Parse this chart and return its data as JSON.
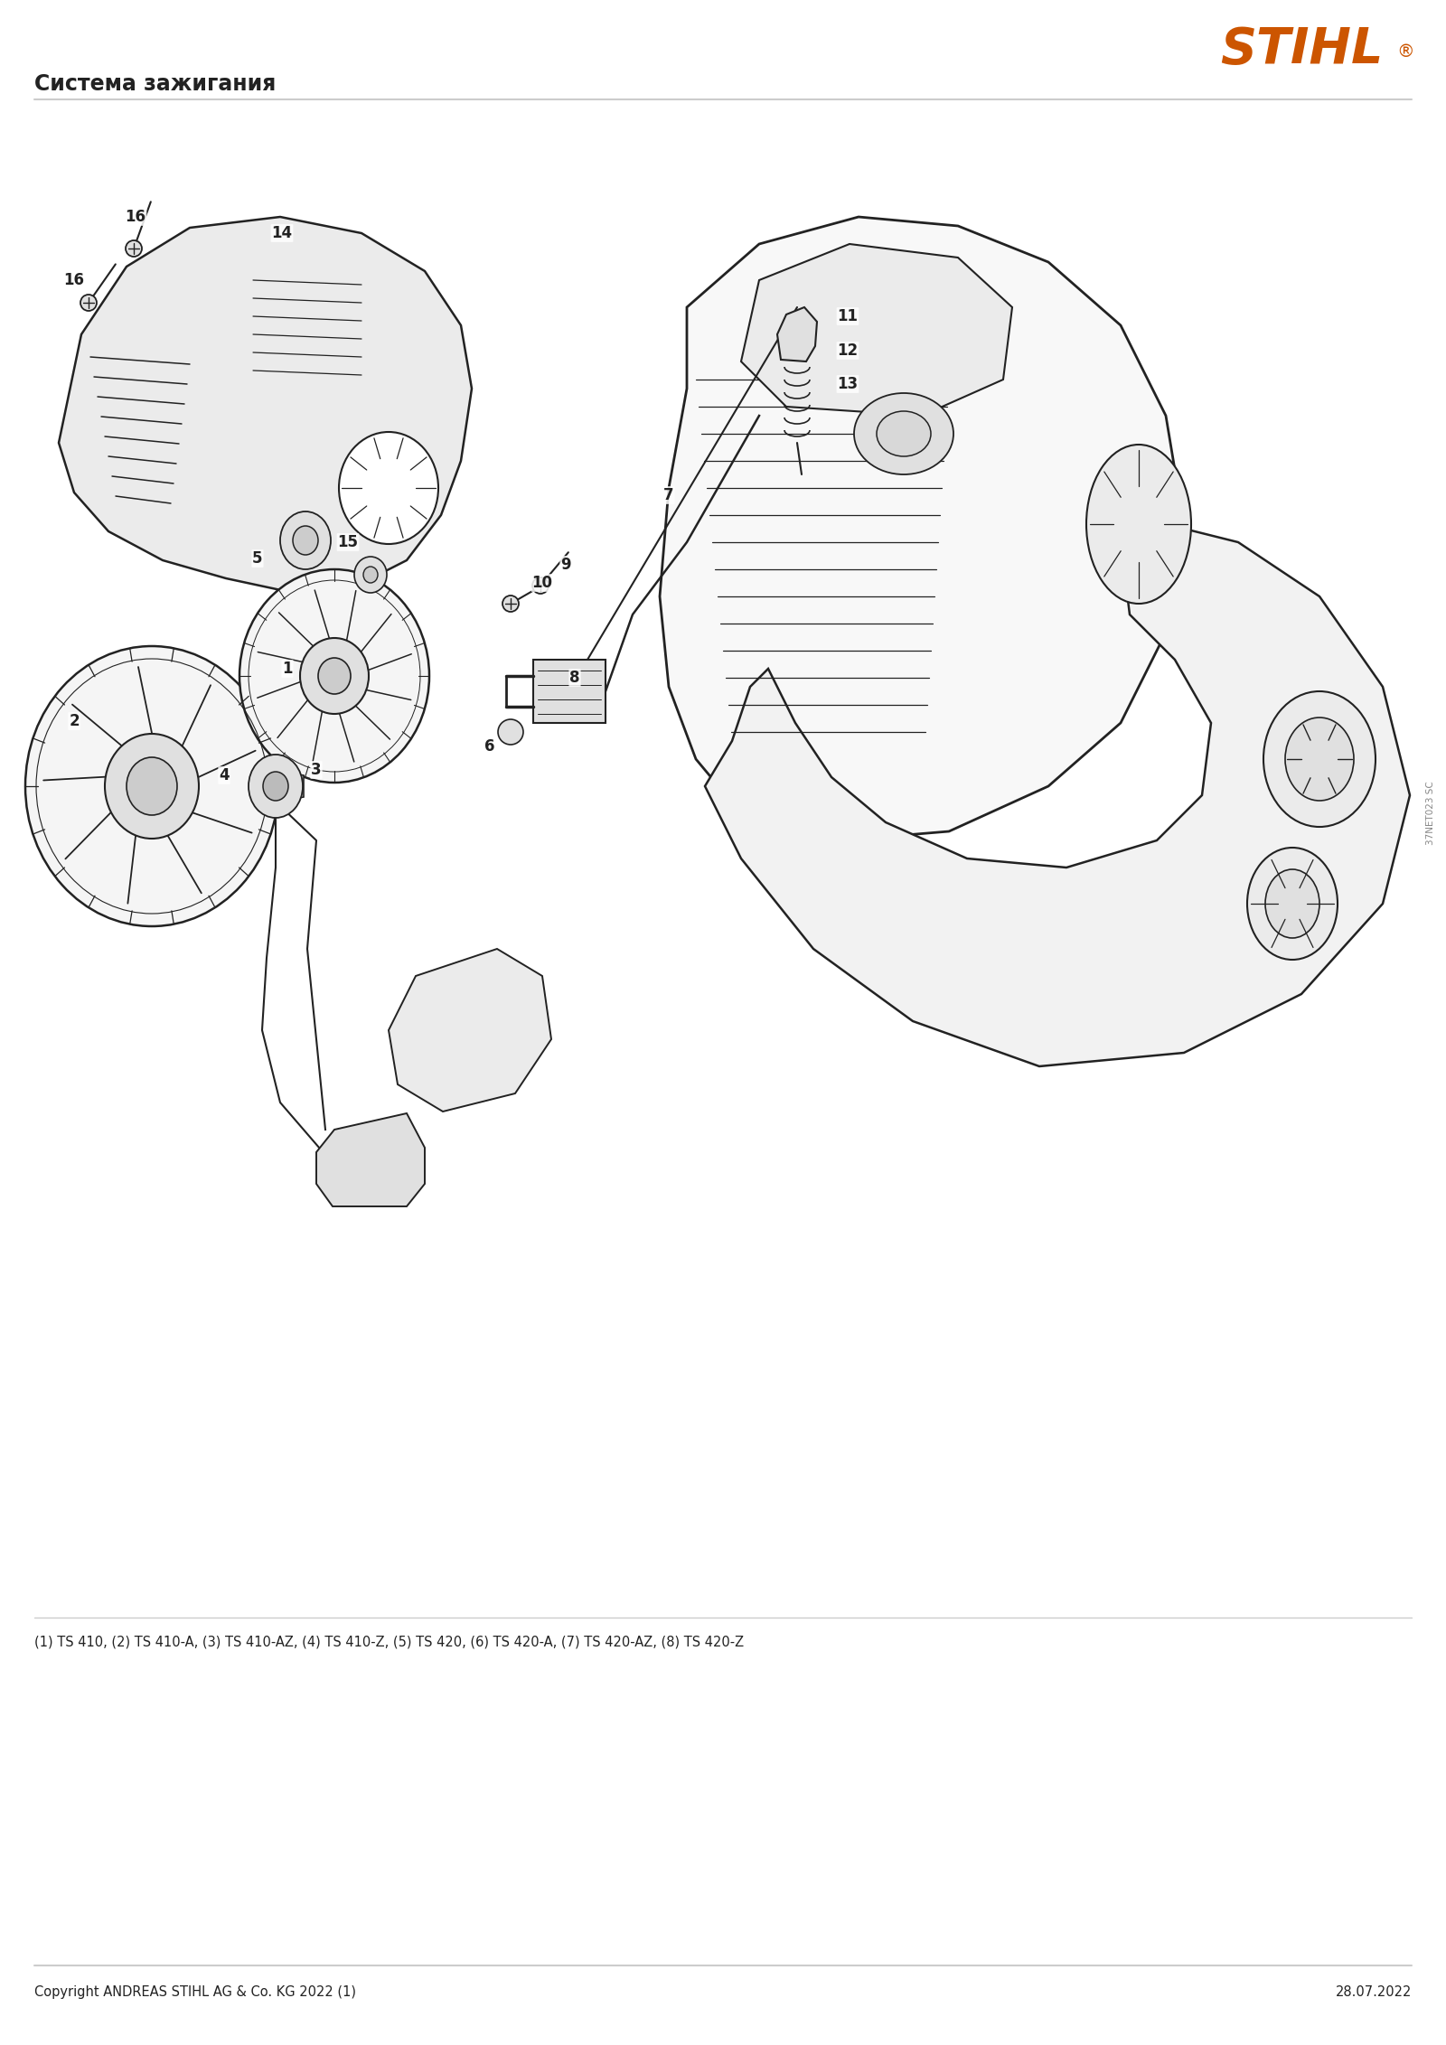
{
  "title": "Система зажигания",
  "stihl_color": "#CC5500",
  "background_color": "#FFFFFF",
  "line_color": "#222222",
  "gray_line": "#AAAAAA",
  "footer_left": "Copyright ANDREAS STIHL AG & Co. KG 2022 (1)",
  "footer_right": "28.07.2022",
  "footnote": "(1) TS 410, (2) TS 410-A, (3) TS 410-AZ, (4) TS 410-Z, (5) TS 420, (6) TS 420-A, (7) TS 420-AZ, (8) TS 420-Z",
  "side_text": "37NET023 SC",
  "fig_width": 16.0,
  "fig_height": 22.63,
  "dpi": 100,
  "title_fontsize": 17,
  "footnote_fontsize": 10.5,
  "footer_fontsize": 10.5,
  "label_fontsize": 12,
  "stihl_fontsize": 40
}
